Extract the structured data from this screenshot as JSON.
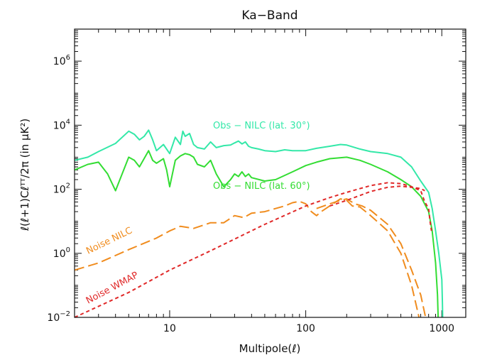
{
  "chart_data": {
    "type": "line",
    "title": "Ka−Band",
    "xlabel": "Multipole(ℓ)",
    "ylabel": "ℓ(ℓ+1)Cℓᵀᵀ/2π  (in μK²)",
    "x_scale": "log",
    "y_scale": "log",
    "xlim": [
      2,
      1500
    ],
    "ylim": [
      0.01,
      10000000
    ],
    "grid": false,
    "x_ticks": [
      {
        "value": 10,
        "label": "10"
      },
      {
        "value": 100,
        "label": "100"
      },
      {
        "value": 1000,
        "label": "1000"
      }
    ],
    "y_ticks": [
      {
        "value": 0.01,
        "base": "10",
        "exp": "−2"
      },
      {
        "value": 1,
        "base": "10",
        "exp": "0"
      },
      {
        "value": 100,
        "base": "10",
        "exp": "2"
      },
      {
        "value": 10000,
        "base": "10",
        "exp": "4"
      },
      {
        "value": 1000000,
        "base": "10",
        "exp": "6"
      }
    ],
    "annotations": [
      {
        "text": "Obs − NILC (lat. 30°)",
        "color": "#33e8a8"
      },
      {
        "text": "Obs − NILC (lat. 60°)",
        "color": "#33dd33"
      },
      {
        "text": "Noise NILC",
        "color": "#f08c1e"
      },
      {
        "text": "Noise WMAP",
        "color": "#e02828"
      }
    ],
    "series": [
      {
        "color": "#33e8a8",
        "style": "solid",
        "points": [
          [
            2,
            800
          ],
          [
            2.5,
            1000
          ],
          [
            3,
            1500
          ],
          [
            4,
            2700
          ],
          [
            5,
            6500
          ],
          [
            5.5,
            5200
          ],
          [
            6,
            3500
          ],
          [
            6.5,
            4500
          ],
          [
            7,
            7000
          ],
          [
            7.5,
            3500
          ],
          [
            8,
            1600
          ],
          [
            9,
            2500
          ],
          [
            10,
            1300
          ],
          [
            11,
            4200
          ],
          [
            12,
            2500
          ],
          [
            12.5,
            6500
          ],
          [
            13,
            4500
          ],
          [
            14,
            5500
          ],
          [
            15,
            2500
          ],
          [
            16,
            2000
          ],
          [
            18,
            1800
          ],
          [
            20,
            3000
          ],
          [
            22,
            2000
          ],
          [
            25,
            2300
          ],
          [
            28,
            2400
          ],
          [
            30,
            2800
          ],
          [
            32,
            3200
          ],
          [
            34,
            2600
          ],
          [
            36,
            3000
          ],
          [
            38,
            2200
          ],
          [
            40,
            2000
          ],
          [
            45,
            1800
          ],
          [
            50,
            1600
          ],
          [
            60,
            1500
          ],
          [
            70,
            1700
          ],
          [
            80,
            1600
          ],
          [
            100,
            1600
          ],
          [
            120,
            1900
          ],
          [
            150,
            2200
          ],
          [
            180,
            2500
          ],
          [
            200,
            2400
          ],
          [
            250,
            1800
          ],
          [
            300,
            1500
          ],
          [
            400,
            1300
          ],
          [
            500,
            1000
          ],
          [
            600,
            500
          ],
          [
            700,
            180
          ],
          [
            800,
            80
          ],
          [
            850,
            25
          ],
          [
            900,
            5
          ],
          [
            950,
            1
          ],
          [
            1000,
            0.15
          ],
          [
            1010,
            0.03
          ],
          [
            1015,
            0.01
          ]
        ]
      },
      {
        "color": "#33dd33",
        "style": "solid",
        "points": [
          [
            2,
            400
          ],
          [
            2.5,
            600
          ],
          [
            3,
            700
          ],
          [
            3.5,
            300
          ],
          [
            4,
            90
          ],
          [
            5,
            1000
          ],
          [
            5.5,
            800
          ],
          [
            6,
            500
          ],
          [
            7,
            1600
          ],
          [
            7.5,
            800
          ],
          [
            8,
            650
          ],
          [
            9,
            900
          ],
          [
            9.5,
            400
          ],
          [
            10,
            120
          ],
          [
            11,
            800
          ],
          [
            12,
            1100
          ],
          [
            13,
            1300
          ],
          [
            14,
            1200
          ],
          [
            15,
            1000
          ],
          [
            16,
            600
          ],
          [
            18,
            500
          ],
          [
            20,
            800
          ],
          [
            22,
            300
          ],
          [
            25,
            120
          ],
          [
            28,
            200
          ],
          [
            30,
            300
          ],
          [
            32,
            250
          ],
          [
            34,
            350
          ],
          [
            36,
            250
          ],
          [
            38,
            300
          ],
          [
            40,
            230
          ],
          [
            50,
            180
          ],
          [
            60,
            200
          ],
          [
            80,
            350
          ],
          [
            100,
            550
          ],
          [
            120,
            700
          ],
          [
            150,
            900
          ],
          [
            200,
            1000
          ],
          [
            250,
            800
          ],
          [
            300,
            600
          ],
          [
            400,
            350
          ],
          [
            500,
            200
          ],
          [
            600,
            120
          ],
          [
            700,
            60
          ],
          [
            800,
            20
          ],
          [
            850,
            5
          ],
          [
            900,
            0.5
          ],
          [
            930,
            0.05
          ],
          [
            940,
            0.01
          ]
        ]
      },
      {
        "color": "#f08c1e",
        "style": "long-dash",
        "points": [
          [
            2,
            0.3
          ],
          [
            3,
            0.5
          ],
          [
            5,
            1.3
          ],
          [
            8,
            3
          ],
          [
            10,
            5
          ],
          [
            12,
            7
          ],
          [
            15,
            6
          ],
          [
            20,
            9
          ],
          [
            25,
            9
          ],
          [
            30,
            15
          ],
          [
            35,
            13
          ],
          [
            40,
            18
          ],
          [
            50,
            20
          ],
          [
            60,
            25
          ],
          [
            70,
            30
          ],
          [
            80,
            38
          ],
          [
            90,
            42
          ],
          [
            100,
            35
          ],
          [
            110,
            20
          ],
          [
            120,
            15
          ],
          [
            130,
            20
          ],
          [
            150,
            30
          ],
          [
            180,
            50
          ],
          [
            200,
            45
          ],
          [
            220,
            30
          ],
          [
            250,
            28
          ],
          [
            300,
            15
          ],
          [
            400,
            5
          ],
          [
            500,
            1
          ],
          [
            600,
            0.1
          ],
          [
            680,
            0.01
          ]
        ]
      },
      {
        "color": "#f08c1e",
        "style": "long-dash",
        "points": [
          [
            120,
            25
          ],
          [
            150,
            35
          ],
          [
            180,
            45
          ],
          [
            200,
            50
          ],
          [
            230,
            35
          ],
          [
            260,
            30
          ],
          [
            300,
            22
          ],
          [
            400,
            8
          ],
          [
            500,
            2
          ],
          [
            600,
            0.3
          ],
          [
            700,
            0.05
          ],
          [
            760,
            0.01
          ]
        ]
      },
      {
        "color": "#e02828",
        "style": "short-dash",
        "points": [
          [
            2,
            0.01
          ],
          [
            5,
            0.06
          ],
          [
            10,
            0.3
          ],
          [
            20,
            1.2
          ],
          [
            50,
            8
          ],
          [
            100,
            30
          ],
          [
            150,
            55
          ],
          [
            200,
            80
          ],
          [
            300,
            130
          ],
          [
            400,
            160
          ],
          [
            500,
            150
          ],
          [
            600,
            120
          ],
          [
            700,
            90
          ],
          [
            750,
            40
          ],
          [
            800,
            25
          ],
          [
            820,
            10
          ],
          [
            840,
            5
          ]
        ]
      },
      {
        "color": "#e02828",
        "style": "short-dash",
        "points": [
          [
            150,
            30
          ],
          [
            200,
            45
          ],
          [
            300,
            85
          ],
          [
            400,
            115
          ],
          [
            500,
            125
          ],
          [
            600,
            115
          ],
          [
            700,
            105
          ],
          [
            750,
            90
          ]
        ]
      }
    ]
  }
}
